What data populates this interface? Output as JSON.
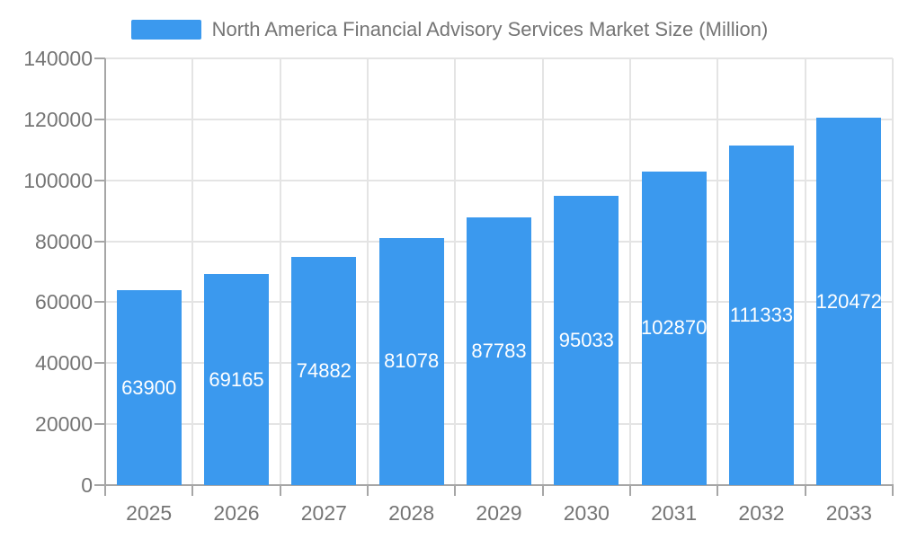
{
  "legend": {
    "label": "North America Financial Advisory Services Market Size (Million)"
  },
  "chart_data": {
    "type": "bar",
    "title": "North America Financial Advisory Services Market Size (Million)",
    "series_name": "North America Financial Advisory Services Market Size (Million)",
    "categories": [
      "2025",
      "2026",
      "2027",
      "2028",
      "2029",
      "2030",
      "2031",
      "2032",
      "2033"
    ],
    "values": [
      63900,
      69165,
      74882,
      81078,
      87783,
      95033,
      102870,
      111333,
      120472
    ],
    "xlabel": "",
    "ylabel": "",
    "ylim": [
      0,
      140000
    ],
    "yticks": [
      0,
      20000,
      40000,
      60000,
      80000,
      100000,
      120000,
      140000
    ],
    "grid": true,
    "legend_position": "top",
    "value_label_position": "inside-center",
    "colors": {
      "bar": "#3B99EE",
      "gridline": "#E4E4E4",
      "axis": "#A6A6A6",
      "axis_text": "#757575",
      "legend_text": "#757575",
      "value_label_text": "#FFFFFF",
      "background": "#FFFFFF"
    }
  }
}
